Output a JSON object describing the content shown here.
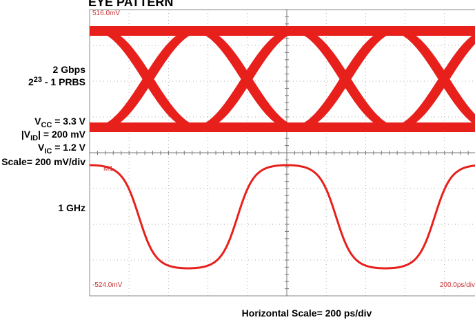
{
  "title": "EYE PATTERN",
  "labels": {
    "rate": "2 Gbps",
    "prbs": {
      "base": "2",
      "exp": "23",
      "rest": " - 1 PRBS"
    },
    "vcc": {
      "base": "V",
      "sub": "CC",
      "rest": " = 3.3 V"
    },
    "vid": {
      "base": "|V",
      "sub": "ID",
      "rest": "| = 200 mV"
    },
    "vic": {
      "base": "V",
      "sub": "IC",
      "rest": " = 1.2 V"
    },
    "scale": "Scale= 200 mV/div",
    "freq": "1 GHz"
  },
  "screen": {
    "top_level": "516.0mV",
    "marker": "M1",
    "bottom_level": "-524.0mV",
    "timebase": "200.0ps/div"
  },
  "footer": "Horizontal Scale= 200 ps/div"
}
